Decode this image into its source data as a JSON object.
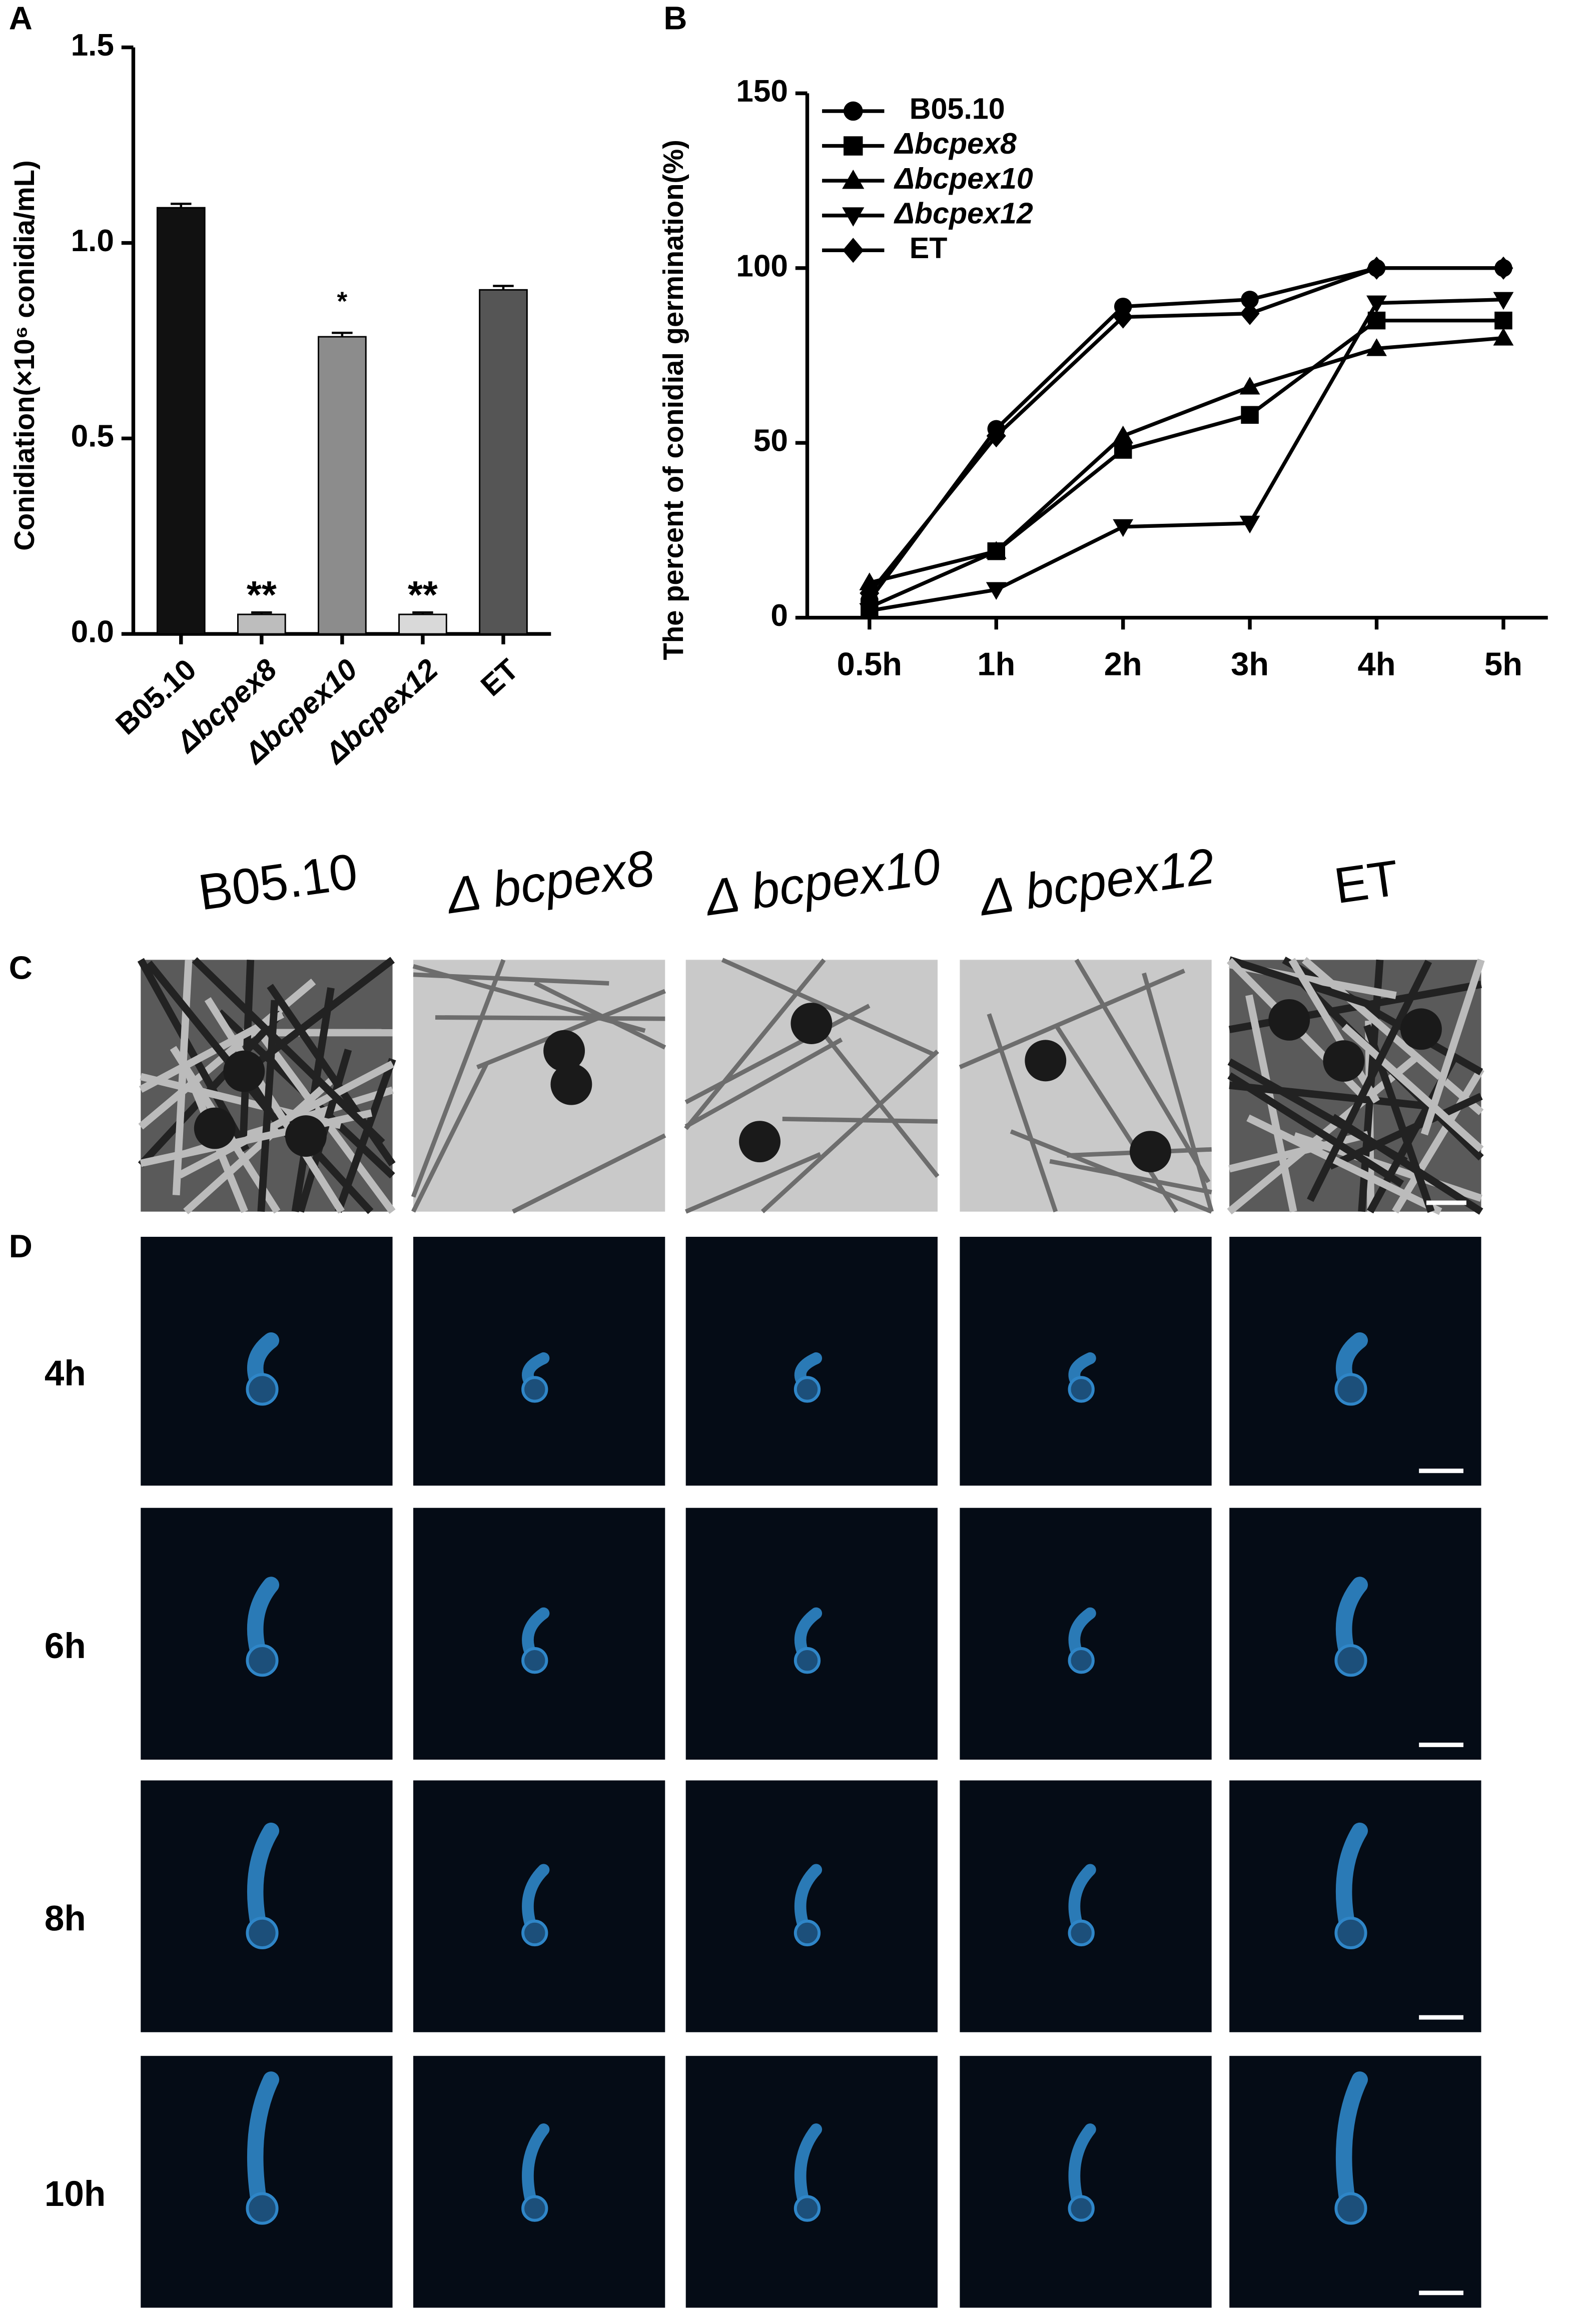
{
  "panel_labels": [
    "A",
    "B",
    "C",
    "D"
  ],
  "chart_data": [
    {
      "type": "bar",
      "ylabel": "Conidiation(×10⁶ conidia/mL)",
      "categories": [
        "B05.10",
        "Δbcpex8",
        "Δbcpex10",
        "Δbcpex12",
        "ET"
      ],
      "values": [
        1.09,
        0.05,
        0.76,
        0.05,
        0.88
      ],
      "errors": [
        0.01,
        0.005,
        0.01,
        0.005,
        0.01
      ],
      "significance": [
        null,
        "**",
        "*",
        "**",
        null
      ],
      "colors": [
        "#111111",
        "#bdbdbd",
        "#8c8c8c",
        "#d9d9d9",
        "#555555"
      ],
      "ylim": [
        0,
        1.5
      ],
      "yticks": [
        {
          "value": 0,
          "label": "0.0"
        },
        {
          "value": 0.5,
          "label": "0.5"
        },
        {
          "value": 1,
          "label": "1.0"
        },
        {
          "value": 1.5,
          "label": "1.5"
        }
      ]
    },
    {
      "type": "line",
      "ylabel": "The percent of conidial germination(%)",
      "categories": [
        "0.5h",
        "1h",
        "2h",
        "3h",
        "4h",
        "5h"
      ],
      "series": [
        {
          "name": "B05.10",
          "marker": "circle",
          "color": "#000000",
          "values": [
            5,
            54,
            89,
            91,
            100,
            100
          ]
        },
        {
          "name": "Δbcpex8",
          "marker": "square",
          "color": "#000000",
          "values": [
            3,
            19,
            48,
            58,
            85,
            85
          ]
        },
        {
          "name": "Δbcpex10",
          "marker": "triangle-up",
          "color": "#000000",
          "values": [
            10,
            19,
            52,
            66,
            77,
            80
          ]
        },
        {
          "name": "Δbcpex12",
          "marker": "triangle-down",
          "color": "#000000",
          "values": [
            2,
            8,
            26,
            27,
            90,
            91
          ]
        },
        {
          "name": "ET",
          "marker": "diamond",
          "color": "#000000",
          "values": [
            7,
            52,
            86,
            87,
            100,
            100
          ]
        }
      ],
      "ylim": [
        0,
        150
      ],
      "yticks": [
        0,
        50,
        100,
        150
      ],
      "legend": "top-left"
    }
  ],
  "micrographs": {
    "columns": [
      "B05.10",
      "Δ bcpex8",
      "Δ bcpex10",
      "Δ bcpex12",
      "ET"
    ],
    "rows": [
      "4h",
      "6h",
      "8h",
      "10h"
    ]
  }
}
